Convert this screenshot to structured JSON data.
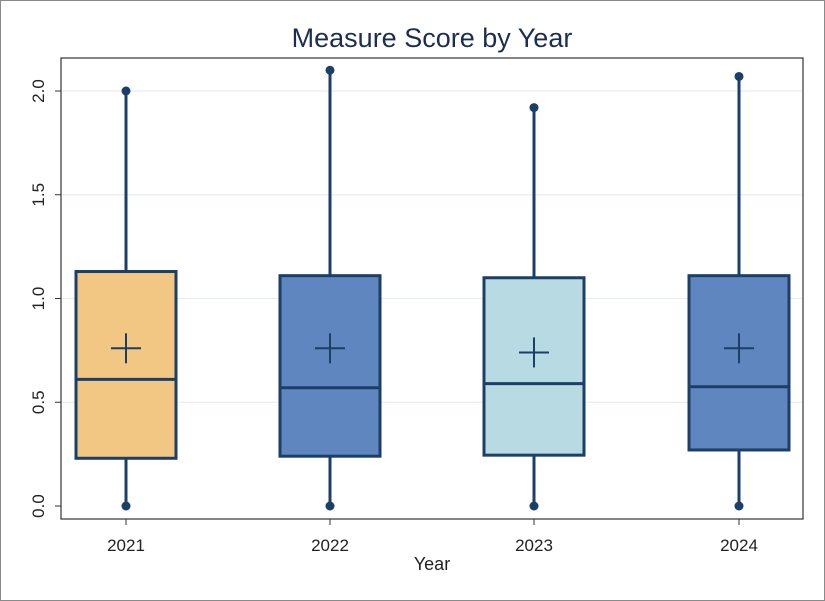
{
  "chart_data": {
    "type": "box",
    "title": "Measure Score by Year",
    "xlabel": "Year",
    "ylabel": "",
    "ylim": [
      0,
      2.1
    ],
    "y_ticks": [
      "0.0",
      "0.5",
      "1.0",
      "1.5",
      "2.0"
    ],
    "y_tick_values": [
      0,
      0.5,
      1.0,
      1.5,
      2.0
    ],
    "grid": true,
    "categories": [
      "2021",
      "2022",
      "2023",
      "2024"
    ],
    "boxes": [
      {
        "category": "2021",
        "min": 0.0,
        "q1": 0.23,
        "median": 0.61,
        "q3": 1.13,
        "max": 2.0,
        "mean": 0.76,
        "color": "#f2c784"
      },
      {
        "category": "2022",
        "min": 0.0,
        "q1": 0.24,
        "median": 0.57,
        "q3": 1.11,
        "max": 2.1,
        "mean": 0.76,
        "color": "#5f86bf"
      },
      {
        "category": "2023",
        "min": 0.0,
        "q1": 0.245,
        "median": 0.59,
        "q3": 1.1,
        "max": 1.92,
        "mean": 0.74,
        "color": "#b8dae3"
      },
      {
        "category": "2024",
        "min": 0.0,
        "q1": 0.27,
        "median": 0.575,
        "q3": 1.11,
        "max": 2.07,
        "mean": 0.76,
        "color": "#5f86bf"
      }
    ],
    "outline_color": "#1b3f66",
    "grid_color": "#e6eef2"
  }
}
